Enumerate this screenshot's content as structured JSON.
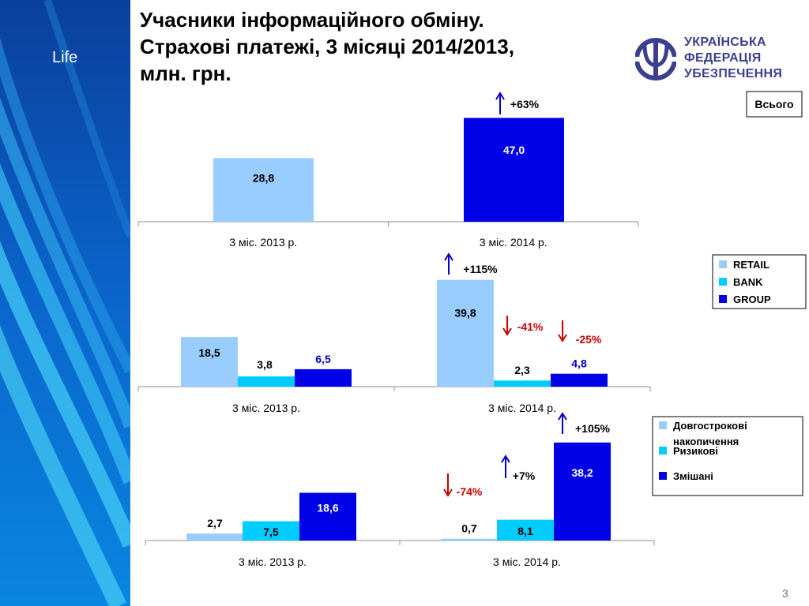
{
  "slide": {
    "sidebar_label": "Life",
    "title_lines": [
      "Учасники інформаційного обміну.",
      "Страхові платежі, 3 місяці 2014/2013,",
      "млн. грн."
    ],
    "logo_lines": [
      "УКРАЇНСЬКА",
      "ФЕДЕРАЦІЯ",
      "УБЕЗПЕЧЕННЯ"
    ],
    "page_number": "3"
  },
  "colors": {
    "light_blue": "#99ccff",
    "cyan": "#00ccff",
    "dark_blue": "#0000e6",
    "up_arrow": "#0000cc",
    "down_arrow": "#cc0000",
    "label_blue": "#0000cc",
    "label_red": "#cc0000",
    "logo": "#3a3f8f"
  },
  "chart_data": [
    {
      "type": "bar",
      "categories": [
        "3 міс. 2013 р.",
        "3 міс. 2014 р."
      ],
      "ylim": [
        0,
        50
      ],
      "legend": {
        "placement": "top-right",
        "boxed": true
      },
      "series": [
        {
          "name": "Всього",
          "values": [
            28.8,
            47.0
          ],
          "labels": [
            "28,8",
            "47,0"
          ],
          "per_bar_colors": [
            "#99ccff",
            "#0000e6"
          ]
        }
      ],
      "annotations": [
        {
          "text": "+63%",
          "category": 1,
          "series": 0,
          "direction": "up"
        }
      ]
    },
    {
      "type": "bar",
      "categories": [
        "3 міс. 2013 р.",
        "3 міс. 2014 р."
      ],
      "ylim": [
        0,
        40
      ],
      "legend": {
        "placement": "right",
        "boxed": true
      },
      "series": [
        {
          "name": "RETAIL",
          "values": [
            18.5,
            39.8
          ],
          "labels": [
            "18,5",
            "39,8"
          ],
          "color": "#99ccff"
        },
        {
          "name": "BANK",
          "values": [
            3.8,
            2.3
          ],
          "labels": [
            "3,8",
            "2,3"
          ],
          "color": "#00ccff"
        },
        {
          "name": "GROUP",
          "values": [
            6.5,
            4.8
          ],
          "labels": [
            "6,5",
            "4,8"
          ],
          "color": "#0000e6"
        }
      ],
      "annotations": [
        {
          "text": "+115%",
          "category": 1,
          "series": 0,
          "direction": "up"
        },
        {
          "text": "-41%",
          "category": 1,
          "series": 1,
          "direction": "down"
        },
        {
          "text": "-25%",
          "category": 1,
          "series": 2,
          "direction": "down"
        }
      ]
    },
    {
      "type": "bar",
      "categories": [
        "3 міс. 2013 р.",
        "3 міс. 2014 р."
      ],
      "ylim": [
        0,
        40
      ],
      "legend": {
        "placement": "right",
        "boxed": true
      },
      "series": [
        {
          "name": "Довгострокові накопичення",
          "values": [
            2.7,
            0.7
          ],
          "labels": [
            "2,7",
            "0,7"
          ],
          "color": "#99ccff"
        },
        {
          "name": "Ризикові",
          "values": [
            7.5,
            8.1
          ],
          "labels": [
            "7,5",
            "8,1"
          ],
          "color": "#00ccff"
        },
        {
          "name": "Змішані",
          "values": [
            18.6,
            38.2
          ],
          "labels": [
            "18,6",
            "38,2"
          ],
          "color": "#0000e6"
        }
      ],
      "annotations": [
        {
          "text": "+105%",
          "category": 1,
          "series": 2,
          "direction": "up"
        },
        {
          "text": "+7%",
          "category": 1,
          "series": 1,
          "direction": "up"
        },
        {
          "text": "-74%",
          "category": 1,
          "series": 0,
          "direction": "down"
        }
      ]
    }
  ]
}
